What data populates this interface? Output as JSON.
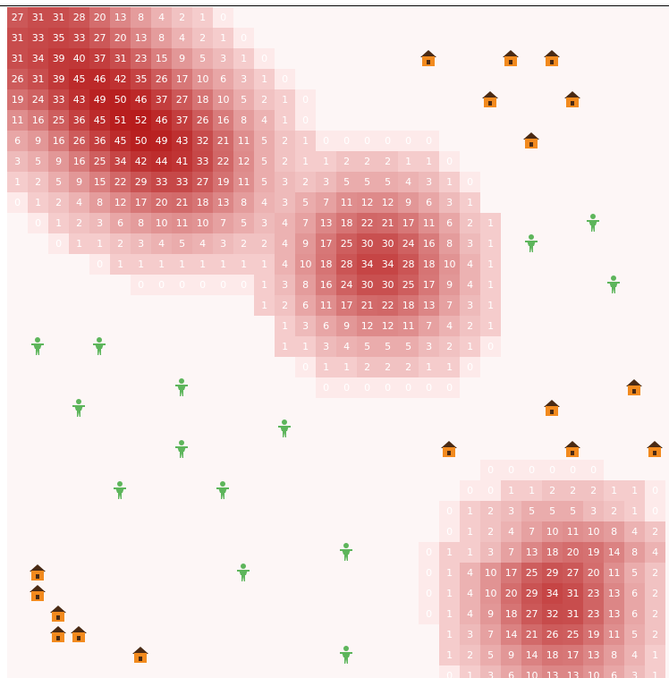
{
  "colors": {
    "heat_low": "#fde3e3",
    "heat_high": "#b71c1c",
    "background": "#fdf6f6",
    "house": "#f28a1e",
    "house_roof": "#4a2a14",
    "person": "#5db55b"
  },
  "icons": {
    "house": "house-icon",
    "person": "person-icon"
  },
  "heat_rows": [
    [
      27,
      31,
      31,
      28,
      20,
      13,
      8,
      4,
      2,
      1,
      0,
      null,
      null,
      null,
      null,
      null,
      null,
      null,
      null,
      null,
      null,
      null,
      null,
      null,
      null,
      null,
      null,
      null,
      null,
      null,
      null,
      null
    ],
    [
      31,
      33,
      35,
      33,
      27,
      20,
      13,
      8,
      4,
      2,
      1,
      0,
      null,
      null,
      null,
      null,
      null,
      null,
      null,
      null,
      null,
      null,
      null,
      null,
      null,
      null,
      null,
      null,
      null,
      null,
      null,
      null
    ],
    [
      31,
      34,
      39,
      40,
      37,
      31,
      23,
      15,
      9,
      5,
      3,
      1,
      0,
      null,
      null,
      null,
      null,
      null,
      null,
      null,
      null,
      null,
      null,
      null,
      null,
      null,
      null,
      null,
      null,
      null,
      null,
      null
    ],
    [
      26,
      31,
      39,
      45,
      46,
      42,
      35,
      26,
      17,
      10,
      6,
      3,
      1,
      0,
      null,
      null,
      null,
      null,
      null,
      null,
      null,
      null,
      null,
      null,
      null,
      null,
      null,
      null,
      null,
      null,
      null,
      null
    ],
    [
      19,
      24,
      33,
      43,
      49,
      50,
      46,
      37,
      27,
      18,
      10,
      5,
      2,
      1,
      0,
      null,
      null,
      null,
      null,
      null,
      null,
      null,
      null,
      null,
      null,
      null,
      null,
      null,
      null,
      null,
      null,
      null
    ],
    [
      11,
      16,
      25,
      36,
      45,
      51,
      52,
      46,
      37,
      26,
      16,
      8,
      4,
      1,
      0,
      null,
      null,
      null,
      null,
      null,
      null,
      null,
      null,
      null,
      null,
      null,
      null,
      null,
      null,
      null,
      null,
      null
    ],
    [
      6,
      9,
      16,
      26,
      36,
      45,
      50,
      49,
      43,
      32,
      21,
      11,
      5,
      2,
      1,
      0,
      0,
      0,
      0,
      0,
      0,
      null,
      null,
      null,
      null,
      null,
      null,
      null,
      null,
      null,
      null,
      null
    ],
    [
      3,
      5,
      9,
      16,
      25,
      34,
      42,
      44,
      41,
      33,
      22,
      12,
      5,
      2,
      1,
      1,
      2,
      2,
      2,
      1,
      1,
      0,
      null,
      null,
      null,
      null,
      null,
      null,
      null,
      null,
      null,
      null
    ],
    [
      1,
      2,
      5,
      9,
      15,
      22,
      29,
      33,
      33,
      27,
      19,
      11,
      5,
      3,
      2,
      3,
      5,
      5,
      5,
      4,
      3,
      1,
      0,
      null,
      null,
      null,
      null,
      null,
      null,
      null,
      null,
      null
    ],
    [
      0,
      1,
      2,
      4,
      8,
      12,
      17,
      20,
      21,
      18,
      13,
      8,
      4,
      3,
      5,
      7,
      11,
      12,
      12,
      9,
      6,
      3,
      1,
      null,
      null,
      null,
      null,
      null,
      null,
      null,
      null,
      null
    ],
    [
      null,
      0,
      1,
      2,
      3,
      6,
      8,
      10,
      11,
      10,
      7,
      5,
      3,
      4,
      7,
      13,
      18,
      22,
      21,
      17,
      11,
      6,
      2,
      1,
      null,
      null,
      null,
      null,
      null,
      null,
      null,
      null
    ],
    [
      null,
      null,
      0,
      1,
      1,
      2,
      3,
      4,
      5,
      4,
      3,
      2,
      2,
      4,
      9,
      17,
      25,
      30,
      30,
      24,
      16,
      8,
      3,
      1,
      null,
      null,
      null,
      null,
      null,
      null,
      null,
      null
    ],
    [
      null,
      null,
      null,
      null,
      0,
      1,
      1,
      1,
      1,
      1,
      1,
      1,
      1,
      4,
      10,
      18,
      28,
      34,
      34,
      28,
      18,
      10,
      4,
      1,
      null,
      null,
      null,
      null,
      null,
      null,
      null,
      null
    ],
    [
      null,
      null,
      null,
      null,
      null,
      null,
      0,
      0,
      0,
      0,
      0,
      0,
      1,
      3,
      8,
      16,
      24,
      30,
      30,
      25,
      17,
      9,
      4,
      1,
      null,
      null,
      null,
      null,
      null,
      null,
      null,
      null
    ],
    [
      null,
      null,
      null,
      null,
      null,
      null,
      null,
      null,
      null,
      null,
      null,
      null,
      1,
      2,
      6,
      11,
      17,
      21,
      22,
      18,
      13,
      7,
      3,
      1,
      null,
      null,
      null,
      null,
      null,
      null,
      null,
      null
    ],
    [
      null,
      null,
      null,
      null,
      null,
      null,
      null,
      null,
      null,
      null,
      null,
      null,
      null,
      1,
      3,
      6,
      9,
      12,
      12,
      11,
      7,
      4,
      2,
      1,
      null,
      null,
      null,
      null,
      null,
      null,
      null,
      null
    ],
    [
      null,
      null,
      null,
      null,
      null,
      null,
      null,
      null,
      null,
      null,
      null,
      null,
      null,
      1,
      1,
      3,
      4,
      5,
      5,
      5,
      3,
      2,
      1,
      0,
      null,
      null,
      null,
      null,
      null,
      null,
      null,
      null
    ],
    [
      null,
      null,
      null,
      null,
      null,
      null,
      null,
      null,
      null,
      null,
      null,
      null,
      null,
      null,
      0,
      1,
      1,
      2,
      2,
      2,
      1,
      1,
      0,
      null,
      null,
      null,
      null,
      null,
      null,
      null,
      null,
      null
    ],
    [
      null,
      null,
      null,
      null,
      null,
      null,
      null,
      null,
      null,
      null,
      null,
      null,
      null,
      null,
      null,
      0,
      0,
      0,
      0,
      0,
      0,
      0,
      null,
      null,
      null,
      null,
      null,
      null,
      null,
      null,
      null,
      null
    ],
    [
      null,
      null,
      null,
      null,
      null,
      null,
      null,
      null,
      null,
      null,
      null,
      null,
      null,
      null,
      null,
      null,
      null,
      null,
      null,
      null,
      null,
      null,
      null,
      null,
      null,
      null,
      null,
      null,
      null,
      null,
      null,
      null
    ],
    [
      null,
      null,
      null,
      null,
      null,
      null,
      null,
      null,
      null,
      null,
      null,
      null,
      null,
      null,
      null,
      null,
      null,
      null,
      null,
      null,
      null,
      null,
      null,
      null,
      null,
      null,
      null,
      null,
      null,
      null,
      null,
      null
    ],
    [
      null,
      null,
      null,
      null,
      null,
      null,
      null,
      null,
      null,
      null,
      null,
      null,
      null,
      null,
      null,
      null,
      null,
      null,
      null,
      null,
      null,
      null,
      null,
      null,
      null,
      null,
      null,
      null,
      null,
      null,
      null,
      null
    ],
    [
      null,
      null,
      null,
      null,
      null,
      null,
      null,
      null,
      null,
      null,
      null,
      null,
      null,
      null,
      null,
      null,
      null,
      null,
      null,
      null,
      null,
      null,
      null,
      0,
      0,
      0,
      0,
      0,
      0,
      null,
      null,
      null
    ],
    [
      null,
      null,
      null,
      null,
      null,
      null,
      null,
      null,
      null,
      null,
      null,
      null,
      null,
      null,
      null,
      null,
      null,
      null,
      null,
      null,
      null,
      null,
      0,
      0,
      1,
      1,
      2,
      2,
      2,
      1,
      1,
      0
    ],
    [
      null,
      null,
      null,
      null,
      null,
      null,
      null,
      null,
      null,
      null,
      null,
      null,
      null,
      null,
      null,
      null,
      null,
      null,
      null,
      null,
      null,
      0,
      1,
      2,
      3,
      5,
      5,
      5,
      3,
      2,
      1,
      0
    ],
    [
      null,
      null,
      null,
      null,
      null,
      null,
      null,
      null,
      null,
      null,
      null,
      null,
      null,
      null,
      null,
      null,
      null,
      null,
      null,
      null,
      null,
      0,
      1,
      2,
      4,
      7,
      10,
      11,
      10,
      8,
      4,
      2
    ],
    [
      null,
      null,
      null,
      null,
      null,
      null,
      null,
      null,
      null,
      null,
      null,
      null,
      null,
      null,
      null,
      null,
      null,
      null,
      null,
      null,
      0,
      1,
      1,
      3,
      7,
      13,
      18,
      20,
      19,
      14,
      8,
      4
    ],
    [
      null,
      null,
      null,
      null,
      null,
      null,
      null,
      null,
      null,
      null,
      null,
      null,
      null,
      null,
      null,
      null,
      null,
      null,
      null,
      null,
      0,
      1,
      4,
      10,
      17,
      25,
      29,
      27,
      20,
      11,
      5,
      2
    ],
    [
      null,
      null,
      null,
      null,
      null,
      null,
      null,
      null,
      null,
      null,
      null,
      null,
      null,
      null,
      null,
      null,
      null,
      null,
      null,
      null,
      0,
      1,
      4,
      10,
      20,
      29,
      34,
      31,
      23,
      13,
      6,
      2
    ],
    [
      null,
      null,
      null,
      null,
      null,
      null,
      null,
      null,
      null,
      null,
      null,
      null,
      null,
      null,
      null,
      null,
      null,
      null,
      null,
      null,
      0,
      1,
      4,
      9,
      18,
      27,
      32,
      31,
      23,
      13,
      6,
      2
    ],
    [
      null,
      null,
      null,
      null,
      null,
      null,
      null,
      null,
      null,
      null,
      null,
      null,
      null,
      null,
      null,
      null,
      null,
      null,
      null,
      null,
      null,
      1,
      3,
      7,
      14,
      21,
      26,
      25,
      19,
      11,
      5,
      2
    ],
    [
      null,
      null,
      null,
      null,
      null,
      null,
      null,
      null,
      null,
      null,
      null,
      null,
      null,
      null,
      null,
      null,
      null,
      null,
      null,
      null,
      null,
      1,
      2,
      5,
      9,
      14,
      18,
      17,
      13,
      8,
      4,
      1
    ],
    [
      null,
      null,
      null,
      null,
      null,
      null,
      null,
      null,
      null,
      null,
      null,
      null,
      null,
      null,
      null,
      null,
      null,
      null,
      null,
      null,
      null,
      0,
      1,
      3,
      6,
      10,
      13,
      13,
      10,
      6,
      3,
      1
    ]
  ],
  "houses": [
    {
      "col": 20,
      "row": 2
    },
    {
      "col": 24,
      "row": 2
    },
    {
      "col": 26,
      "row": 2
    },
    {
      "col": 23,
      "row": 4
    },
    {
      "col": 27,
      "row": 4
    },
    {
      "col": 25,
      "row": 6
    },
    {
      "col": 30,
      "row": 18
    },
    {
      "col": 26,
      "row": 19
    },
    {
      "col": 21,
      "row": 21
    },
    {
      "col": 27,
      "row": 21
    },
    {
      "col": 31,
      "row": 21
    },
    {
      "col": 1,
      "row": 27
    },
    {
      "col": 1,
      "row": 28
    },
    {
      "col": 2,
      "row": 29
    },
    {
      "col": 2,
      "row": 30
    },
    {
      "col": 3,
      "row": 30
    },
    {
      "col": 6,
      "row": 31
    }
  ],
  "people": [
    {
      "col": 28,
      "row": 10
    },
    {
      "col": 25,
      "row": 11
    },
    {
      "col": 29,
      "row": 13
    },
    {
      "col": 1,
      "row": 16
    },
    {
      "col": 4,
      "row": 16
    },
    {
      "col": 8,
      "row": 18
    },
    {
      "col": 3,
      "row": 19
    },
    {
      "col": 13,
      "row": 20
    },
    {
      "col": 8,
      "row": 21
    },
    {
      "col": 5,
      "row": 23
    },
    {
      "col": 10,
      "row": 23
    },
    {
      "col": 16,
      "row": 26
    },
    {
      "col": 11,
      "row": 27
    },
    {
      "col": 16,
      "row": 31
    }
  ]
}
